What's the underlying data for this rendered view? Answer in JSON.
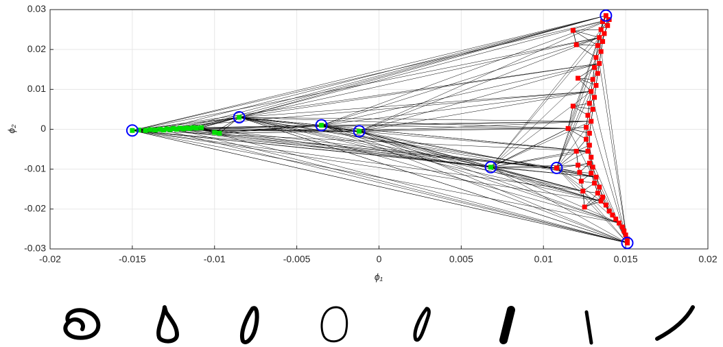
{
  "chart_data": {
    "type": "scatter",
    "xlabel": "ϕ₁",
    "ylabel": "ϕ₂",
    "xlim": [
      -0.02,
      0.02
    ],
    "ylim": [
      -0.03,
      0.03
    ],
    "xticks": [
      -0.02,
      -0.015,
      -0.01,
      -0.005,
      0,
      0.005,
      0.01,
      0.015,
      0.02
    ],
    "yticks": [
      -0.03,
      -0.02,
      -0.01,
      0,
      0.01,
      0.02,
      0.03
    ],
    "grid": true,
    "series": [
      {
        "color": "#00e000",
        "marker": "square",
        "x": [
          -0.015,
          -0.0146,
          -0.0142,
          -0.0139,
          -0.0136,
          -0.0133,
          -0.0131,
          -0.0129,
          -0.0127,
          -0.0125,
          -0.0123,
          -0.0121,
          -0.0119,
          -0.0117,
          -0.0115,
          -0.0113,
          -0.0111,
          -0.0108,
          -0.01,
          -0.0097,
          -0.0085,
          -0.0035,
          -0.0012,
          0.0068
        ],
        "y": [
          -0.0003,
          -0.0002,
          -0.0003,
          -0.0001,
          -0.0002,
          0.0,
          -0.0002,
          0.0001,
          -0.0001,
          0.0002,
          0.0,
          0.0003,
          0.0001,
          0.0003,
          0.0002,
          0.0004,
          0.0003,
          0.0004,
          -0.0008,
          -0.001,
          0.003,
          0.001,
          -0.0005,
          -0.0095
        ]
      },
      {
        "color": "#ff0000",
        "marker": "square",
        "x": [
          0.0138,
          0.014,
          0.0136,
          0.0139,
          0.0135,
          0.0137,
          0.0134,
          0.0136,
          0.0133,
          0.0135,
          0.0132,
          0.0134,
          0.0131,
          0.0133,
          0.013,
          0.0132,
          0.0129,
          0.0131,
          0.0128,
          0.013,
          0.0127,
          0.0129,
          0.0126,
          0.0128,
          0.0126,
          0.0128,
          0.0127,
          0.0129,
          0.0128,
          0.013,
          0.0129,
          0.0132,
          0.0131,
          0.0134,
          0.0133,
          0.0136,
          0.0135,
          0.0138,
          0.014,
          0.0142,
          0.0144,
          0.0146,
          0.0148,
          0.0149,
          0.015,
          0.0151,
          0.0151,
          0.0118,
          0.012,
          0.0121,
          0.0118,
          0.0115,
          0.012,
          0.0122,
          0.0108,
          0.0125,
          0.0124,
          0.0123,
          0.0121
        ],
        "y": [
          0.0285,
          0.0275,
          0.027,
          0.026,
          0.025,
          0.024,
          0.023,
          0.022,
          0.021,
          0.0195,
          0.018,
          0.0165,
          0.0155,
          0.014,
          0.0125,
          0.011,
          0.0095,
          0.008,
          0.0065,
          0.005,
          0.0035,
          0.002,
          0.0005,
          -0.001,
          -0.0025,
          -0.004,
          -0.0055,
          -0.007,
          -0.0085,
          -0.0095,
          -0.011,
          -0.012,
          -0.0135,
          -0.0145,
          -0.016,
          -0.017,
          -0.018,
          -0.019,
          -0.0205,
          -0.0215,
          -0.0225,
          -0.0235,
          -0.0245,
          -0.0255,
          -0.0265,
          -0.0275,
          -0.0285,
          0.0248,
          0.0212,
          0.0128,
          0.0058,
          0.0002,
          -0.0055,
          -0.0108,
          -0.0097,
          -0.0195,
          -0.0155,
          -0.013,
          -0.009
        ]
      },
      {
        "color": "#0000ff",
        "marker": "circle",
        "x": [
          -0.015,
          -0.0085,
          -0.0035,
          -0.0012,
          0.0068,
          0.0108,
          0.0138,
          0.0151
        ],
        "y": [
          -0.0003,
          0.003,
          0.001,
          -0.0005,
          -0.0095,
          -0.0097,
          0.0285,
          -0.0285
        ]
      }
    ]
  }
}
